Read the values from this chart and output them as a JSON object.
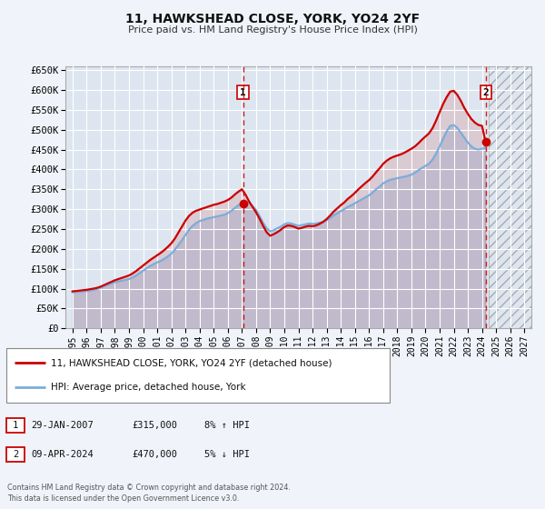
{
  "title": "11, HAWKSHEAD CLOSE, YORK, YO24 2YF",
  "subtitle": "Price paid vs. HM Land Registry's House Price Index (HPI)",
  "bg_color": "#f0f4fa",
  "plot_bg_color": "#dde6f0",
  "grid_color": "#ffffff",
  "red_color": "#cc0000",
  "blue_color": "#7aaddb",
  "ylim": [
    0,
    660000
  ],
  "xlim_start": 1994.5,
  "xlim_end": 2027.5,
  "yticks": [
    0,
    50000,
    100000,
    150000,
    200000,
    250000,
    300000,
    350000,
    400000,
    450000,
    500000,
    550000,
    600000,
    650000
  ],
  "ytick_labels": [
    "£0",
    "£50K",
    "£100K",
    "£150K",
    "£200K",
    "£250K",
    "£300K",
    "£350K",
    "£400K",
    "£450K",
    "£500K",
    "£550K",
    "£600K",
    "£650K"
  ],
  "xtick_years": [
    1995,
    1996,
    1997,
    1998,
    1999,
    2000,
    2001,
    2002,
    2003,
    2004,
    2005,
    2006,
    2007,
    2008,
    2009,
    2010,
    2011,
    2012,
    2013,
    2014,
    2015,
    2016,
    2017,
    2018,
    2019,
    2020,
    2021,
    2022,
    2023,
    2024,
    2025,
    2026,
    2027
  ],
  "sale1_x": 2007.08,
  "sale1_y": 315000,
  "sale1_label": "1",
  "sale1_date": "29-JAN-2007",
  "sale1_price": "£315,000",
  "sale1_hpi": "8% ↑ HPI",
  "sale2_x": 2024.27,
  "sale2_y": 470000,
  "sale2_label": "2",
  "sale2_date": "09-APR-2024",
  "sale2_price": "£470,000",
  "sale2_hpi": "5% ↓ HPI",
  "future_start": 2024.5,
  "legend_line1": "11, HAWKSHEAD CLOSE, YORK, YO24 2YF (detached house)",
  "legend_line2": "HPI: Average price, detached house, York",
  "footer": "Contains HM Land Registry data © Crown copyright and database right 2024.\nThis data is licensed under the Open Government Licence v3.0.",
  "hpi_years": [
    1995.0,
    1995.25,
    1995.5,
    1995.75,
    1996.0,
    1996.25,
    1996.5,
    1996.75,
    1997.0,
    1997.25,
    1997.5,
    1997.75,
    1998.0,
    1998.25,
    1998.5,
    1998.75,
    1999.0,
    1999.25,
    1999.5,
    1999.75,
    2000.0,
    2000.25,
    2000.5,
    2000.75,
    2001.0,
    2001.25,
    2001.5,
    2001.75,
    2002.0,
    2002.25,
    2002.5,
    2002.75,
    2003.0,
    2003.25,
    2003.5,
    2003.75,
    2004.0,
    2004.25,
    2004.5,
    2004.75,
    2005.0,
    2005.25,
    2005.5,
    2005.75,
    2006.0,
    2006.25,
    2006.5,
    2006.75,
    2007.0,
    2007.25,
    2007.5,
    2007.75,
    2008.0,
    2008.25,
    2008.5,
    2008.75,
    2009.0,
    2009.25,
    2009.5,
    2009.75,
    2010.0,
    2010.25,
    2010.5,
    2010.75,
    2011.0,
    2011.25,
    2011.5,
    2011.75,
    2012.0,
    2012.25,
    2012.5,
    2012.75,
    2013.0,
    2013.25,
    2013.5,
    2013.75,
    2014.0,
    2014.25,
    2014.5,
    2014.75,
    2015.0,
    2015.25,
    2015.5,
    2015.75,
    2016.0,
    2016.25,
    2016.5,
    2016.75,
    2017.0,
    2017.25,
    2017.5,
    2017.75,
    2018.0,
    2018.25,
    2018.5,
    2018.75,
    2019.0,
    2019.25,
    2019.5,
    2019.75,
    2020.0,
    2020.25,
    2020.5,
    2020.75,
    2021.0,
    2021.25,
    2021.5,
    2021.75,
    2022.0,
    2022.25,
    2022.5,
    2022.75,
    2023.0,
    2023.25,
    2023.5,
    2023.75,
    2024.0,
    2024.25
  ],
  "hpi_values": [
    91000,
    91500,
    92000,
    93000,
    94000,
    95000,
    97000,
    99000,
    102000,
    106000,
    110000,
    113000,
    116000,
    118000,
    120000,
    122000,
    124000,
    128000,
    133000,
    139000,
    145000,
    151000,
    157000,
    162000,
    166000,
    170000,
    175000,
    181000,
    188000,
    198000,
    210000,
    222000,
    235000,
    248000,
    258000,
    265000,
    270000,
    273000,
    276000,
    278000,
    280000,
    282000,
    284000,
    286000,
    290000,
    296000,
    303000,
    310000,
    315000,
    318000,
    316000,
    308000,
    298000,
    283000,
    266000,
    252000,
    244000,
    247000,
    252000,
    256000,
    262000,
    265000,
    264000,
    261000,
    258000,
    260000,
    262000,
    264000,
    263000,
    264000,
    266000,
    268000,
    272000,
    278000,
    285000,
    290000,
    295000,
    300000,
    306000,
    310000,
    315000,
    320000,
    325000,
    330000,
    335000,
    342000,
    350000,
    357000,
    365000,
    370000,
    374000,
    376000,
    378000,
    380000,
    382000,
    384000,
    387000,
    392000,
    398000,
    404000,
    409000,
    415000,
    425000,
    440000,
    458000,
    478000,
    496000,
    510000,
    512000,
    505000,
    493000,
    480000,
    468000,
    458000,
    452000,
    450000,
    452000,
    456000
  ],
  "red_years": [
    1995.0,
    1995.25,
    1995.5,
    1995.75,
    1996.0,
    1996.25,
    1996.5,
    1996.75,
    1997.0,
    1997.25,
    1997.5,
    1997.75,
    1998.0,
    1998.25,
    1998.5,
    1998.75,
    1999.0,
    1999.25,
    1999.5,
    1999.75,
    2000.0,
    2000.25,
    2000.5,
    2000.75,
    2001.0,
    2001.25,
    2001.5,
    2001.75,
    2002.0,
    2002.25,
    2002.5,
    2002.75,
    2003.0,
    2003.25,
    2003.5,
    2003.75,
    2004.0,
    2004.25,
    2004.5,
    2004.75,
    2005.0,
    2005.25,
    2005.5,
    2005.75,
    2006.0,
    2006.25,
    2006.5,
    2006.75,
    2007.0,
    2007.25,
    2007.5,
    2007.75,
    2008.0,
    2008.25,
    2008.5,
    2008.75,
    2009.0,
    2009.25,
    2009.5,
    2009.75,
    2010.0,
    2010.25,
    2010.5,
    2010.75,
    2011.0,
    2011.25,
    2011.5,
    2011.75,
    2012.0,
    2012.25,
    2012.5,
    2012.75,
    2013.0,
    2013.25,
    2013.5,
    2013.75,
    2014.0,
    2014.25,
    2014.5,
    2014.75,
    2015.0,
    2015.25,
    2015.5,
    2015.75,
    2016.0,
    2016.25,
    2016.5,
    2016.75,
    2017.0,
    2017.25,
    2017.5,
    2017.75,
    2018.0,
    2018.25,
    2018.5,
    2018.75,
    2019.0,
    2019.25,
    2019.5,
    2019.75,
    2020.0,
    2020.25,
    2020.5,
    2020.75,
    2021.0,
    2021.25,
    2021.5,
    2021.75,
    2022.0,
    2022.25,
    2022.5,
    2022.75,
    2023.0,
    2023.25,
    2023.5,
    2023.75,
    2024.0,
    2024.25
  ],
  "red_values": [
    93000,
    94000,
    95000,
    96000,
    97000,
    98500,
    100000,
    102000,
    105000,
    109000,
    113000,
    117000,
    121000,
    124000,
    127000,
    130000,
    133000,
    138000,
    144000,
    151000,
    158000,
    165000,
    172000,
    178000,
    184000,
    190000,
    197000,
    205000,
    214000,
    226000,
    241000,
    256000,
    271000,
    283000,
    291000,
    296000,
    299000,
    302000,
    305000,
    308000,
    311000,
    313000,
    316000,
    319000,
    323000,
    329000,
    337000,
    344000,
    350000,
    337000,
    320000,
    306000,
    292000,
    276000,
    258000,
    242000,
    233000,
    237000,
    242000,
    248000,
    255000,
    259000,
    258000,
    255000,
    251000,
    253000,
    256000,
    258000,
    257000,
    259000,
    263000,
    268000,
    275000,
    284000,
    294000,
    302000,
    310000,
    317000,
    326000,
    333000,
    341000,
    350000,
    358000,
    366000,
    373000,
    382000,
    393000,
    403000,
    414000,
    422000,
    428000,
    432000,
    435000,
    438000,
    442000,
    447000,
    452000,
    458000,
    466000,
    475000,
    483000,
    491000,
    504000,
    523000,
    544000,
    565000,
    582000,
    596000,
    598000,
    588000,
    573000,
    555000,
    540000,
    527000,
    518000,
    512000,
    510000,
    470000
  ]
}
